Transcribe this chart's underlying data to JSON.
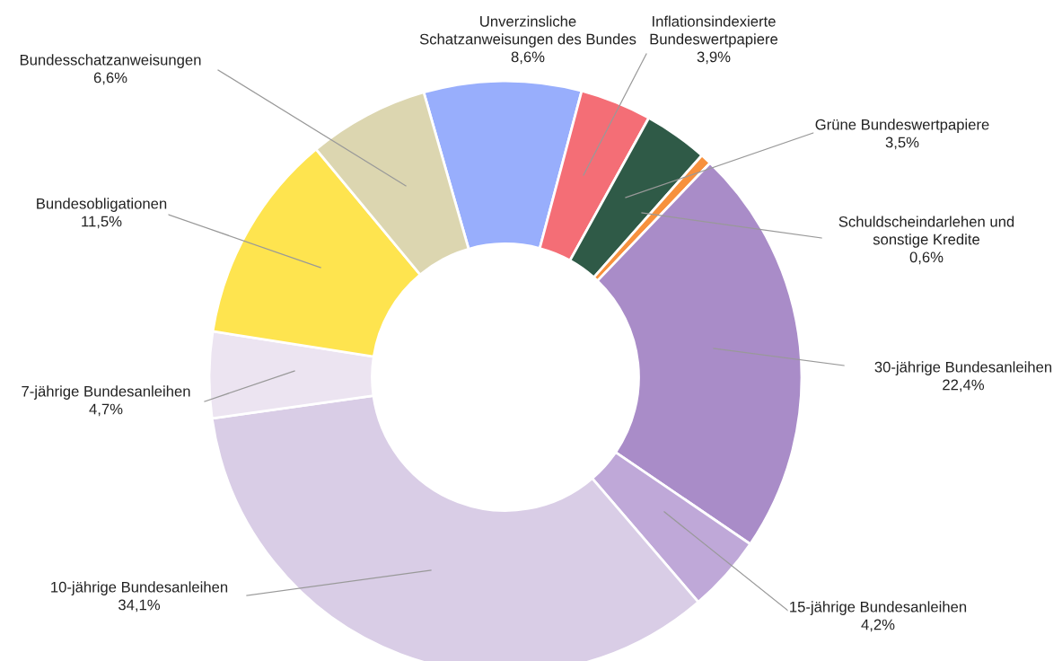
{
  "chart_data": {
    "type": "donut",
    "categories": [
      "Unverzinsliche\nSchatzanweisungen des Bundes",
      "Inflationsindexierte\nBundeswertpapiere",
      "Grüne Bundeswertpapiere",
      "Schuldscheindarlehen und\nsonstige Kredite",
      "30-jährige Bundesanleihen",
      "15-jährige Bundesanleihen",
      "10-jährige Bundesanleihen",
      "7-jährige Bundesanleihen",
      "Bundesobligationen",
      "Bundesschatzanweisungen"
    ],
    "values": [
      8.6,
      3.9,
      3.5,
      0.6,
      22.4,
      4.2,
      34.1,
      4.7,
      11.5,
      6.6
    ],
    "value_labels": [
      "8,6%",
      "3,9%",
      "3,5%",
      "0,6%",
      "22,4%",
      "4,2%",
      "34,1%",
      "4,7%",
      "11,5%",
      "6,6%"
    ],
    "colors": [
      "#98aefc",
      "#f46e76",
      "#2f5a47",
      "#f7913d",
      "#a98cc8",
      "#bfa8d8",
      "#d9cde6",
      "#ece4f1",
      "#fee44f",
      "#dcd6b0"
    ],
    "legend": false
  }
}
